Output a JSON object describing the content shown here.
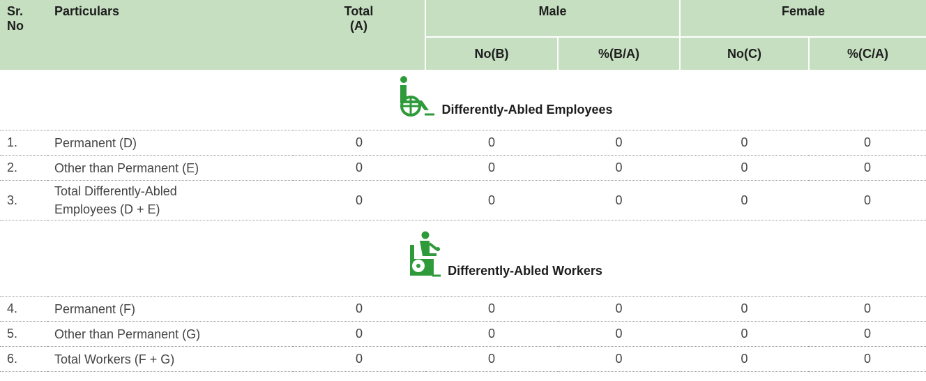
{
  "header": {
    "sr_no": "Sr. No",
    "particulars": "Particulars",
    "total": "Total (A)",
    "male": "Male",
    "female": "Female",
    "male_no": "No(B)",
    "male_pct": "%(B/A)",
    "female_no": "No(C)",
    "female_pct": "%(C/A)"
  },
  "sections": [
    {
      "title": "Differently-Abled Employees",
      "rows": [
        [
          "1.",
          "Permanent (D)",
          0,
          0,
          0,
          0,
          0
        ],
        [
          "2.",
          "Other than Permanent (E)",
          0,
          0,
          0,
          0,
          0
        ],
        [
          "3.",
          "Total Differently-Abled Employees (D + E)",
          0,
          0,
          0,
          0,
          0
        ]
      ]
    },
    {
      "title": "Differently-Abled Workers",
      "rows": [
        [
          "4.",
          "Permanent (F)",
          0,
          0,
          0,
          0,
          0
        ],
        [
          "5.",
          "Other than Permanent (G)",
          0,
          0,
          0,
          0,
          0
        ],
        [
          "6.",
          "Total Workers (F + G)",
          0,
          0,
          0,
          0,
          0
        ]
      ]
    }
  ]
}
